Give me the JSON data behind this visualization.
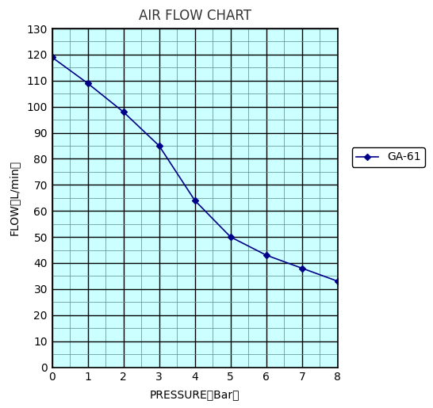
{
  "title": "AIR FLOW CHART",
  "xlabel": "PRESSURE（Bar）",
  "ylabel": "FLOW（L/min）",
  "pressure": [
    0,
    1,
    2,
    3,
    4,
    5,
    6,
    7,
    8
  ],
  "flow": [
    119,
    109,
    98,
    85,
    64,
    50,
    43,
    38,
    33
  ],
  "xlim": [
    0,
    8
  ],
  "ylim": [
    0,
    130
  ],
  "xticks": [
    0,
    1,
    2,
    3,
    4,
    5,
    6,
    7,
    8
  ],
  "yticks": [
    0,
    10,
    20,
    30,
    40,
    50,
    60,
    70,
    80,
    90,
    100,
    110,
    120,
    130
  ],
  "x_minor": [
    0.5,
    1.5,
    2.5,
    3.5,
    4.5,
    5.5,
    6.5,
    7.5
  ],
  "y_minor": [
    5,
    15,
    25,
    35,
    45,
    55,
    65,
    75,
    85,
    95,
    105,
    115,
    125
  ],
  "line_color": "#00008B",
  "marker": "D",
  "marker_size": 4,
  "line_width": 1.2,
  "legend_label": "GA-61",
  "bg_color": "#CCFFFF",
  "major_grid_color": "#000000",
  "minor_grid_color": "#5a8a8a",
  "title_fontsize": 12,
  "label_fontsize": 10,
  "tick_fontsize": 10,
  "legend_fontsize": 10,
  "major_grid_lw": 1.0,
  "minor_grid_lw": 0.5
}
